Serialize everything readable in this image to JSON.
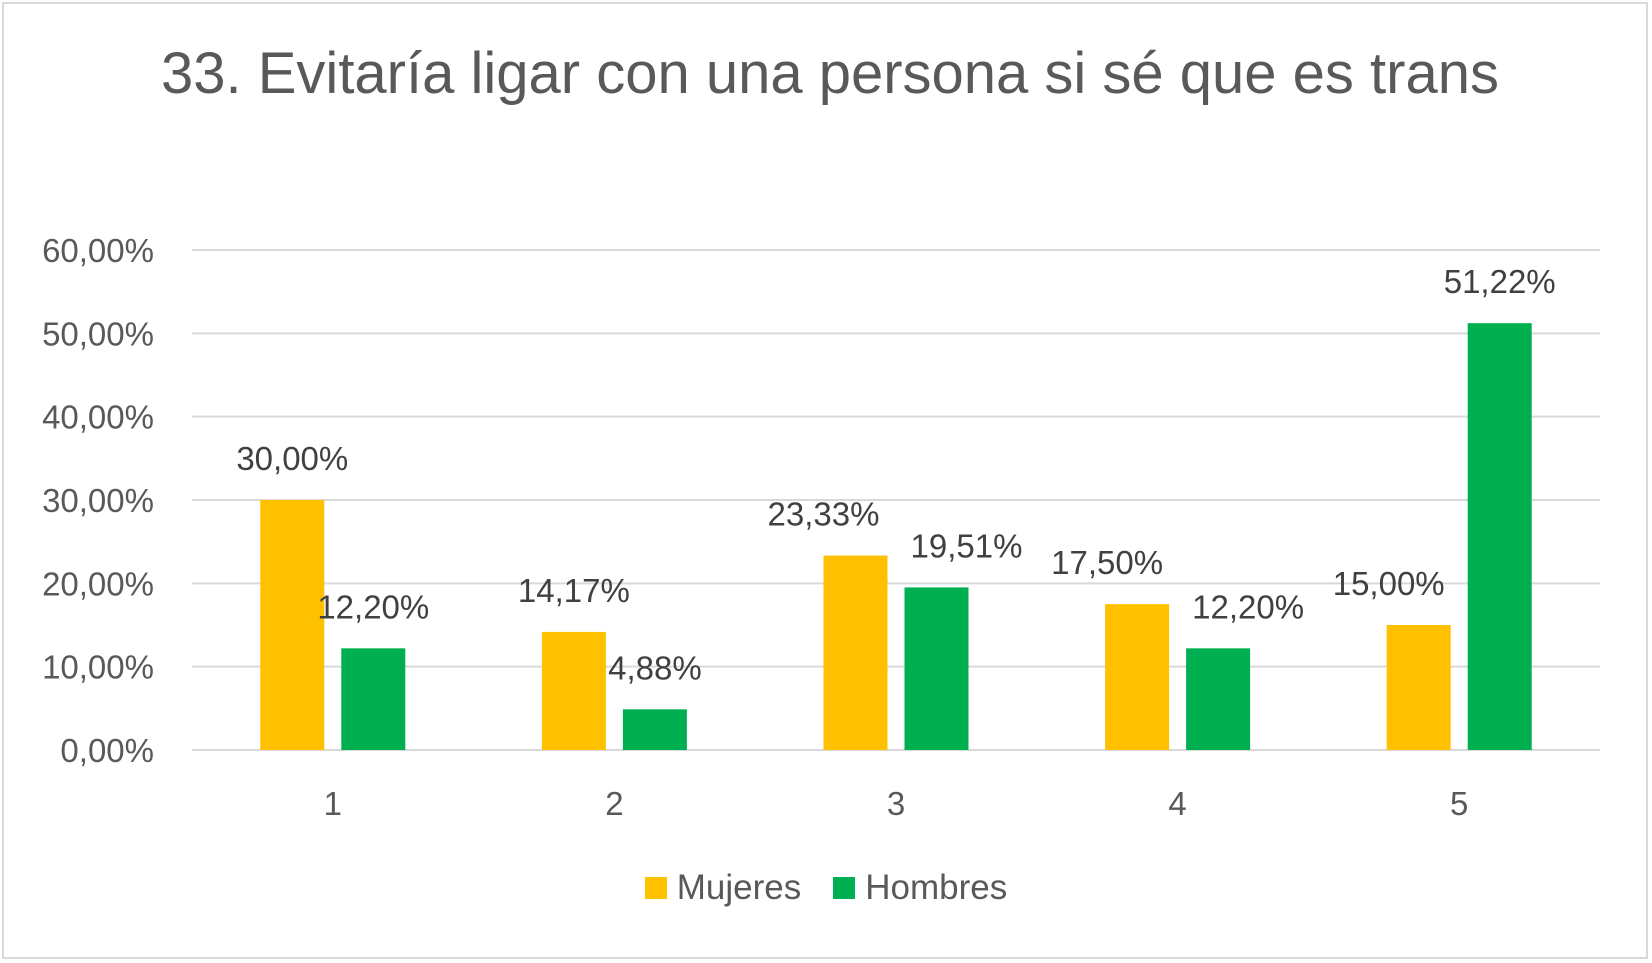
{
  "chart_data": {
    "type": "bar",
    "title": "33. Evitaría ligar con una persona si sé que es trans",
    "categories": [
      "1",
      "2",
      "3",
      "4",
      "5"
    ],
    "series": [
      {
        "name": "Mujeres",
        "color": "#FFC000",
        "values": [
          30.0,
          14.17,
          23.33,
          17.5,
          15.0
        ],
        "labels": [
          "30,00%",
          "14,17%",
          "23,33%",
          "17,50%",
          "15,00%"
        ]
      },
      {
        "name": "Hombres",
        "color": "#00B050",
        "values": [
          12.2,
          4.88,
          19.51,
          12.2,
          51.22
        ],
        "labels": [
          "12,20%",
          "4,88%",
          "19,51%",
          "12,20%",
          "51,22%"
        ]
      }
    ],
    "ylim": [
      0,
      60
    ],
    "yticks": [
      0,
      10,
      20,
      30,
      40,
      50,
      60
    ],
    "ytick_labels": [
      "0,00%",
      "10,00%",
      "20,00%",
      "30,00%",
      "40,00%",
      "50,00%",
      "60,00%"
    ],
    "xlabel": "",
    "ylabel": "",
    "grid": true,
    "legend": "bottom"
  }
}
